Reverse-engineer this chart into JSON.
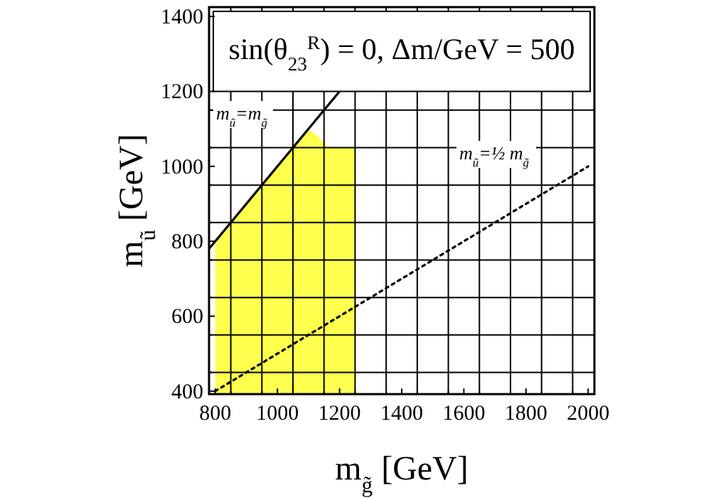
{
  "chart_data": {
    "type": "line",
    "title": "sin(θ$_{23}$$^{R}$) =  0,  Δm/GeV = 500",
    "xlabel": "m$_{g̃}$ [GeV]",
    "ylabel": "m$_{ũ}$ [GeV]",
    "xlim": [
      780,
      2020
    ],
    "ylim": [
      392,
      1425
    ],
    "xticks": [
      800,
      {
        "value": 850,
        "label": null
      },
      {
        "value": 950,
        "label": null
      },
      1000,
      {
        "value": 1050,
        "label": null
      },
      {
        "value": 1150,
        "label": null
      },
      1200,
      {
        "value": 1250,
        "label": null
      },
      {
        "value": 1350,
        "label": null
      },
      1400,
      {
        "value": 1450,
        "label": null
      },
      {
        "value": 1550,
        "label": null
      },
      1600,
      {
        "value": 1650,
        "label": null
      },
      {
        "value": 1750,
        "label": null
      },
      1800,
      {
        "value": 1850,
        "label": null
      },
      {
        "value": 1950,
        "label": null
      },
      2000
    ],
    "yticks": [
      400,
      {
        "value": 450,
        "label": null
      },
      {
        "value": 550,
        "label": null
      },
      600,
      {
        "value": 650,
        "label": null
      },
      {
        "value": 750,
        "label": null
      },
      800,
      {
        "value": 850,
        "label": null
      },
      {
        "value": 950,
        "label": null
      },
      1000,
      {
        "value": 1050,
        "label": null
      },
      {
        "value": 1150,
        "label": null
      },
      1200,
      1400
    ],
    "grid": true,
    "series": [
      {
        "type": "area",
        "color": "#ffff4d",
        "x": [
          800,
          1090,
          1110,
          1130,
          1150,
          1170,
          1250
        ],
        "values": [
          800,
          1090,
          1095,
          1080,
          1060,
          1050,
          1050
        ]
      },
      {
        "color": "#000000",
        "line_style": "solid",
        "x": [
          780,
          1200
        ],
        "values": [
          780,
          1200
        ]
      },
      {
        "color": "#000000",
        "line_style": "dotted",
        "x": [
          800,
          2000
        ],
        "values": [
          400,
          1000
        ]
      }
    ],
    "annotations": [
      "m$_{ũ}$=m$_{g̃}$",
      "m$_{ũ}$=½ m$_{g̃}$"
    ]
  }
}
